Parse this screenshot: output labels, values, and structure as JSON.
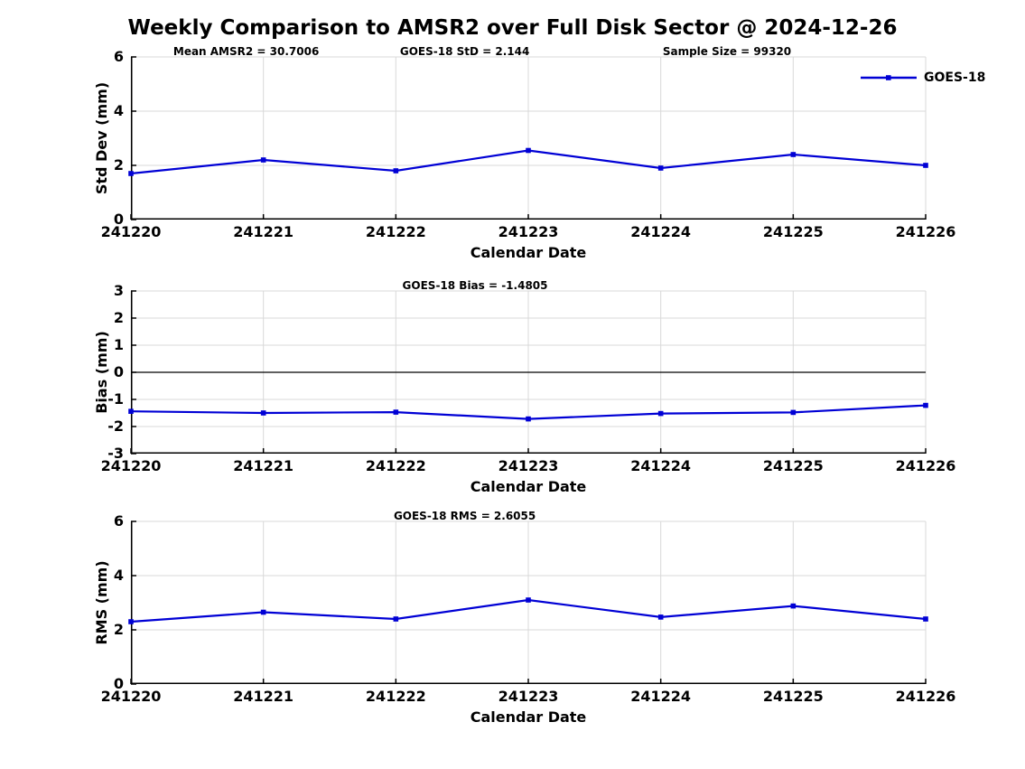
{
  "title": "Weekly Comparison to AMSR2 over Full Disk Sector @ 2024-12-26",
  "legend": {
    "label": "GOES-18",
    "position": "top-right"
  },
  "colors": {
    "line": "#0000d5",
    "grid": "#d9d9d9",
    "axis": "#000000",
    "text": "#000000",
    "background": "#ffffff"
  },
  "chart_data": [
    {
      "type": "line",
      "name": "std-dev",
      "title": "",
      "xlabel": "Calendar Date",
      "ylabel": "Std Dev (mm)",
      "categories": [
        "241220",
        "241221",
        "241222",
        "241223",
        "241224",
        "241225",
        "241226"
      ],
      "series": [
        {
          "name": "GOES-18",
          "values": [
            1.7,
            2.2,
            1.8,
            2.55,
            1.9,
            2.4,
            2.0
          ]
        }
      ],
      "ylim": [
        0,
        6
      ],
      "yticks": [
        0,
        2,
        4,
        6
      ],
      "grid": true,
      "zero_line": false,
      "marker": "square",
      "annotations": [
        {
          "text": "Mean AMSR2 = 30.7006",
          "x_rel": 0.145
        },
        {
          "text": "GOES-18 StD = 2.144",
          "x_rel": 0.42
        },
        {
          "text": "Sample Size = 99320",
          "x_rel": 0.75
        }
      ],
      "legend_entries": [
        "GOES-18"
      ]
    },
    {
      "type": "line",
      "name": "bias",
      "title": "",
      "xlabel": "Calendar Date",
      "ylabel": "Bias (mm)",
      "categories": [
        "241220",
        "241221",
        "241222",
        "241223",
        "241224",
        "241225",
        "241226"
      ],
      "series": [
        {
          "name": "GOES-18",
          "values": [
            -1.44,
            -1.5,
            -1.47,
            -1.72,
            -1.52,
            -1.48,
            -1.22
          ]
        }
      ],
      "ylim": [
        -3,
        3
      ],
      "yticks": [
        -3,
        -2,
        -1,
        0,
        1,
        2,
        3
      ],
      "grid": true,
      "zero_line": true,
      "marker": "square",
      "annotations": [
        {
          "text": "GOES-18 Bias  = -1.4805",
          "x_rel": 0.433
        }
      ],
      "legend_entries": []
    },
    {
      "type": "line",
      "name": "rms",
      "title": "",
      "xlabel": "Calendar Date",
      "ylabel": "RMS (mm)",
      "categories": [
        "241220",
        "241221",
        "241222",
        "241223",
        "241224",
        "241225",
        "241226"
      ],
      "series": [
        {
          "name": "GOES-18",
          "values": [
            2.3,
            2.65,
            2.4,
            3.1,
            2.47,
            2.88,
            2.4
          ]
        }
      ],
      "ylim": [
        0,
        6
      ],
      "yticks": [
        0,
        2,
        4,
        6
      ],
      "grid": true,
      "zero_line": false,
      "marker": "square",
      "annotations": [
        {
          "text": "GOES-18 RMS = 2.6055",
          "x_rel": 0.42
        }
      ],
      "legend_entries": []
    }
  ]
}
